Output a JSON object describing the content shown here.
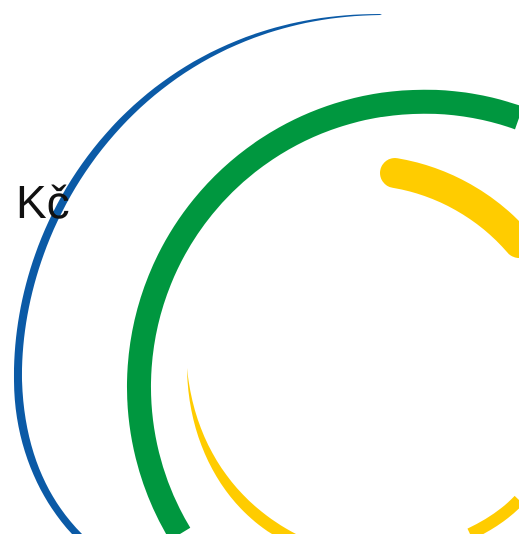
{
  "graphic": {
    "currency_symbol": "Kč",
    "colors": {
      "background": "#ffffff",
      "text": "#111111",
      "blue": "#0b5aa6",
      "green": "#00973f",
      "yellow": "#ffcc00"
    },
    "elements": [
      {
        "name": "blue-swoosh",
        "color": "blue"
      },
      {
        "name": "green-ring",
        "color": "green"
      },
      {
        "name": "yellow-thick-arc",
        "color": "yellow"
      },
      {
        "name": "yellow-thin-arc",
        "color": "yellow"
      }
    ]
  }
}
